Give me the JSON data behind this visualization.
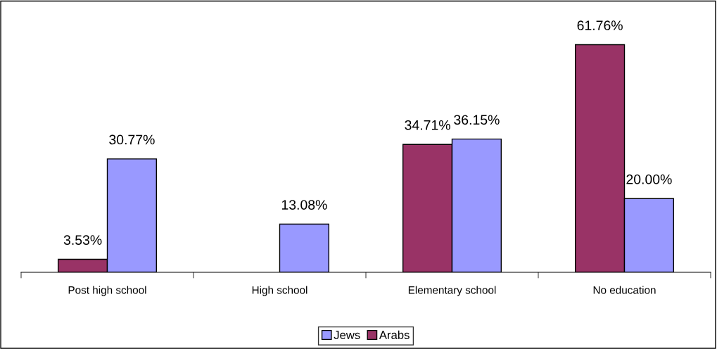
{
  "chart_data": {
    "type": "bar",
    "categories": [
      "Post high school",
      "High school",
      "Elementary school",
      "No education"
    ],
    "series": [
      {
        "name": "Arabs",
        "color": "#993366",
        "values": [
          3.53,
          null,
          34.71,
          61.76
        ],
        "value_labels": [
          "3.53%",
          null,
          "34.71%",
          "61.76%"
        ]
      },
      {
        "name": "Jews",
        "color": "#9999ff",
        "values": [
          30.77,
          13.08,
          36.15,
          20.0
        ],
        "value_labels": [
          "30.77%",
          "13.08%",
          "36.15%",
          "20.00%"
        ]
      }
    ],
    "legend": "bottom",
    "grid": false,
    "tick_labels": "x"
  }
}
